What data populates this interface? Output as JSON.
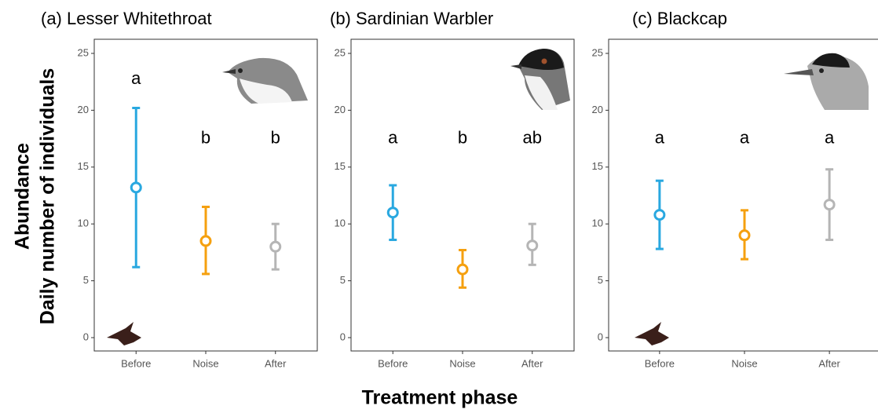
{
  "y_label_1": "Abundance",
  "y_label_2": "Daily number of individuals",
  "x_label": "Treatment phase",
  "chart_data": [
    {
      "type": "errorbar",
      "title": "(a) Lesser Whitethroat",
      "categories": [
        "Before",
        "Noise",
        "After"
      ],
      "values": [
        13.2,
        8.5,
        8.0
      ],
      "lower": [
        6.2,
        5.6,
        6.0
      ],
      "upper": [
        20.2,
        11.5,
        10.0
      ],
      "annotations": [
        "a",
        "b",
        "b"
      ],
      "colors": [
        "#29a8e0",
        "#f5a00f",
        "#b5b5b5"
      ],
      "ylim": [
        0,
        25
      ],
      "yticks": [
        0,
        5,
        10,
        15,
        20,
        25
      ]
    },
    {
      "type": "errorbar",
      "title": "(b) Sardinian Warbler",
      "categories": [
        "Before",
        "Noise",
        "After"
      ],
      "values": [
        11.0,
        6.0,
        8.1
      ],
      "lower": [
        8.6,
        4.4,
        6.4
      ],
      "upper": [
        13.4,
        7.7,
        10.0
      ],
      "annotations": [
        "a",
        "b",
        "ab"
      ],
      "colors": [
        "#29a8e0",
        "#f5a00f",
        "#b5b5b5"
      ],
      "ylim": [
        0,
        25
      ],
      "yticks": [
        0,
        5,
        10,
        15,
        20,
        25
      ]
    },
    {
      "type": "errorbar",
      "title": "(c) Blackcap",
      "categories": [
        "Before",
        "Noise",
        "After"
      ],
      "values": [
        10.8,
        9.0,
        11.7
      ],
      "lower": [
        7.8,
        6.9,
        8.6
      ],
      "upper": [
        13.8,
        11.2,
        14.8
      ],
      "annotations": [
        "a",
        "a",
        "a"
      ],
      "colors": [
        "#29a8e0",
        "#f5a00f",
        "#b5b5b5"
      ],
      "ylim": [
        0,
        25
      ],
      "yticks": [
        0,
        5,
        10,
        15,
        20,
        25
      ]
    }
  ]
}
